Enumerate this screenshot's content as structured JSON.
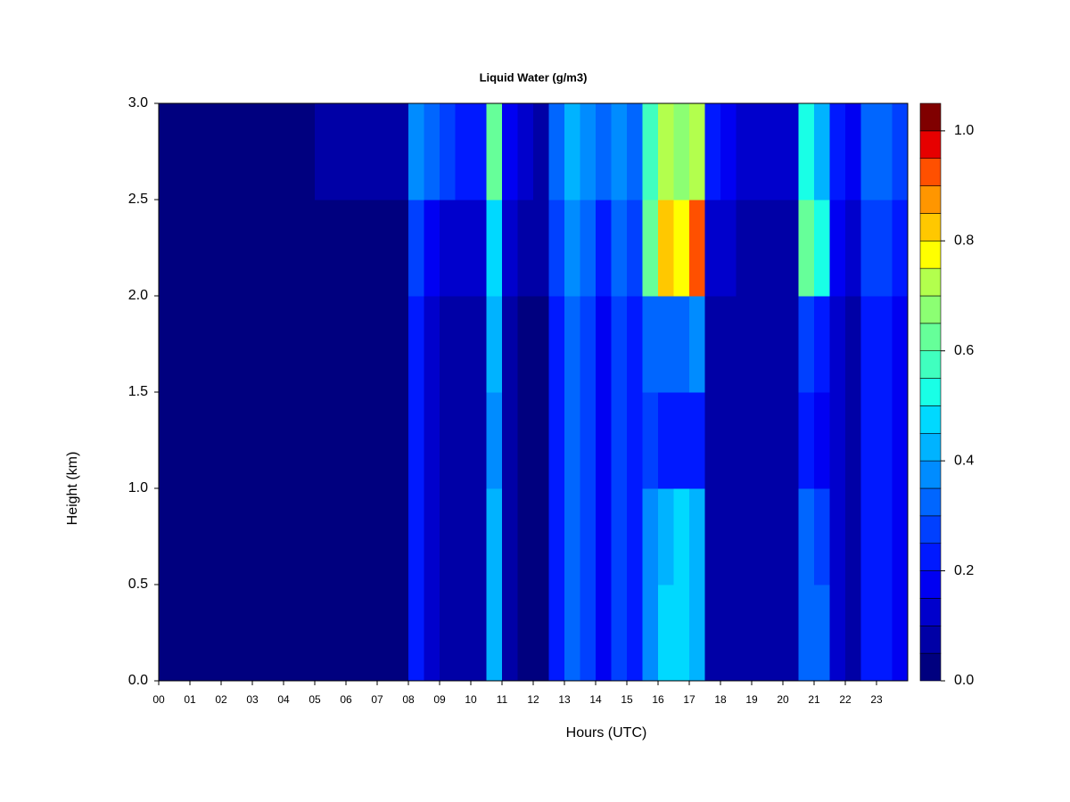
{
  "chart_data": {
    "type": "heatmap",
    "title": "Liquid Water (g/m3)",
    "x_label": "Hours (UTC)",
    "y_label": "Height (km)",
    "xlim": [
      0,
      24
    ],
    "ylim": [
      0,
      3
    ],
    "xticks": [
      {
        "value": 0,
        "label": "00"
      },
      {
        "value": 1,
        "label": "01"
      },
      {
        "value": 2,
        "label": "02"
      },
      {
        "value": 3,
        "label": "03"
      },
      {
        "value": 4,
        "label": "04"
      },
      {
        "value": 5,
        "label": "05"
      },
      {
        "value": 6,
        "label": "06"
      },
      {
        "value": 7,
        "label": "07"
      },
      {
        "value": 8,
        "label": "08"
      },
      {
        "value": 9,
        "label": "09"
      },
      {
        "value": 10,
        "label": "10"
      },
      {
        "value": 11,
        "label": "11"
      },
      {
        "value": 12,
        "label": "12"
      },
      {
        "value": 13,
        "label": "13"
      },
      {
        "value": 14,
        "label": "14"
      },
      {
        "value": 15,
        "label": "15"
      },
      {
        "value": 16,
        "label": "16"
      },
      {
        "value": 17,
        "label": "17"
      },
      {
        "value": 18,
        "label": "18"
      },
      {
        "value": 19,
        "label": "19"
      },
      {
        "value": 20,
        "label": "20"
      },
      {
        "value": 21,
        "label": "21"
      },
      {
        "value": 22,
        "label": "22"
      },
      {
        "value": 23,
        "label": "23"
      }
    ],
    "yticks": [
      {
        "value": 0,
        "label": "0.0"
      },
      {
        "value": 0.5,
        "label": "0.5"
      },
      {
        "value": 1,
        "label": "1.0"
      },
      {
        "value": 1.5,
        "label": "1.5"
      },
      {
        "value": 2,
        "label": "2.0"
      },
      {
        "value": 2.5,
        "label": "2.5"
      },
      {
        "value": 3,
        "label": "3.0"
      }
    ],
    "zlim": [
      0,
      1.05
    ],
    "zticks": [
      {
        "value": 0,
        "label": "0.0"
      },
      {
        "value": 0.2,
        "label": "0.2"
      },
      {
        "value": 0.4,
        "label": "0.4"
      },
      {
        "value": 0.6,
        "label": "0.6"
      },
      {
        "value": 0.8,
        "label": "0.8"
      },
      {
        "value": 1,
        "label": "1.0"
      }
    ],
    "colors": [
      "#00007f",
      "#0000a6",
      "#0000cc",
      "#0000f2",
      "#0019ff",
      "#0040ff",
      "#0066ff",
      "#008cff",
      "#00b3ff",
      "#00d9ff",
      "#19ffe6",
      "#40ffbf",
      "#66ff99",
      "#8cff73",
      "#b3ff4d",
      "#ffff00",
      "#ffc800",
      "#ff9600",
      "#ff5000",
      "#e60000",
      "#800000"
    ],
    "x": [
      0.25,
      0.75,
      1.25,
      1.75,
      2.25,
      2.75,
      3.25,
      3.75,
      4.25,
      4.75,
      5.25,
      5.75,
      6.25,
      6.75,
      7.25,
      7.75,
      8.25,
      8.75,
      9.25,
      9.75,
      10.25,
      10.75,
      11.25,
      11.75,
      12.25,
      12.75,
      13.25,
      13.75,
      14.25,
      14.75,
      15.25,
      15.75,
      16.25,
      16.75,
      17.25,
      17.75,
      18.25,
      18.75,
      19.25,
      19.75,
      20.25,
      20.75,
      21.25,
      21.75,
      22.25,
      22.75,
      23.25,
      23.75
    ],
    "y": [
      0.25,
      0.75,
      1.25,
      1.75,
      2.25,
      2.75
    ],
    "z": [
      [
        0.02,
        0.02,
        0.02,
        0.02,
        0.02,
        0.02,
        0.02,
        0.02,
        0.02,
        0.02,
        0.03,
        0.03,
        0.03,
        0.03,
        0.03,
        0.03,
        0.2,
        0.1,
        0.08,
        0.06,
        0.08,
        0.4,
        0.06,
        0.04,
        0.04,
        0.2,
        0.3,
        0.25,
        0.15,
        0.25,
        0.2,
        0.35,
        0.45,
        0.45,
        0.4,
        0.08,
        0.06,
        0.05,
        0.05,
        0.05,
        0.05,
        0.3,
        0.3,
        0.1,
        0.08,
        0.2,
        0.2,
        0.15
      ],
      [
        0.02,
        0.02,
        0.02,
        0.02,
        0.02,
        0.02,
        0.02,
        0.02,
        0.02,
        0.02,
        0.03,
        0.03,
        0.03,
        0.03,
        0.03,
        0.03,
        0.2,
        0.1,
        0.08,
        0.06,
        0.08,
        0.4,
        0.06,
        0.04,
        0.04,
        0.2,
        0.3,
        0.25,
        0.15,
        0.25,
        0.2,
        0.35,
        0.4,
        0.45,
        0.4,
        0.08,
        0.06,
        0.05,
        0.05,
        0.05,
        0.05,
        0.3,
        0.25,
        0.1,
        0.08,
        0.2,
        0.2,
        0.15
      ],
      [
        0.02,
        0.02,
        0.02,
        0.02,
        0.02,
        0.02,
        0.02,
        0.02,
        0.02,
        0.02,
        0.03,
        0.03,
        0.03,
        0.03,
        0.03,
        0.03,
        0.2,
        0.1,
        0.08,
        0.06,
        0.08,
        0.35,
        0.06,
        0.04,
        0.04,
        0.2,
        0.3,
        0.25,
        0.15,
        0.25,
        0.2,
        0.25,
        0.2,
        0.2,
        0.2,
        0.08,
        0.06,
        0.05,
        0.05,
        0.05,
        0.05,
        0.2,
        0.15,
        0.1,
        0.08,
        0.2,
        0.2,
        0.15
      ],
      [
        0.02,
        0.02,
        0.02,
        0.02,
        0.02,
        0.02,
        0.02,
        0.02,
        0.02,
        0.02,
        0.03,
        0.03,
        0.03,
        0.03,
        0.03,
        0.03,
        0.2,
        0.1,
        0.08,
        0.06,
        0.08,
        0.4,
        0.06,
        0.04,
        0.04,
        0.2,
        0.3,
        0.25,
        0.15,
        0.25,
        0.2,
        0.3,
        0.3,
        0.3,
        0.35,
        0.08,
        0.06,
        0.05,
        0.05,
        0.05,
        0.05,
        0.25,
        0.2,
        0.1,
        0.08,
        0.2,
        0.2,
        0.15
      ],
      [
        0.02,
        0.02,
        0.02,
        0.02,
        0.02,
        0.02,
        0.02,
        0.02,
        0.02,
        0.02,
        0.04,
        0.04,
        0.04,
        0.04,
        0.04,
        0.04,
        0.25,
        0.15,
        0.12,
        0.1,
        0.12,
        0.45,
        0.1,
        0.06,
        0.06,
        0.25,
        0.35,
        0.3,
        0.2,
        0.3,
        0.25,
        0.6,
        0.85,
        0.75,
        0.9,
        0.12,
        0.1,
        0.08,
        0.08,
        0.08,
        0.08,
        0.6,
        0.5,
        0.15,
        0.12,
        0.25,
        0.25,
        0.2
      ],
      [
        0.03,
        0.03,
        0.03,
        0.03,
        0.03,
        0.03,
        0.03,
        0.03,
        0.03,
        0.03,
        0.08,
        0.08,
        0.08,
        0.08,
        0.08,
        0.08,
        0.35,
        0.3,
        0.25,
        0.2,
        0.2,
        0.6,
        0.15,
        0.1,
        0.08,
        0.3,
        0.4,
        0.35,
        0.3,
        0.35,
        0.3,
        0.55,
        0.7,
        0.65,
        0.7,
        0.2,
        0.15,
        0.12,
        0.12,
        0.12,
        0.12,
        0.5,
        0.4,
        0.2,
        0.15,
        0.3,
        0.3,
        0.25
      ]
    ]
  }
}
